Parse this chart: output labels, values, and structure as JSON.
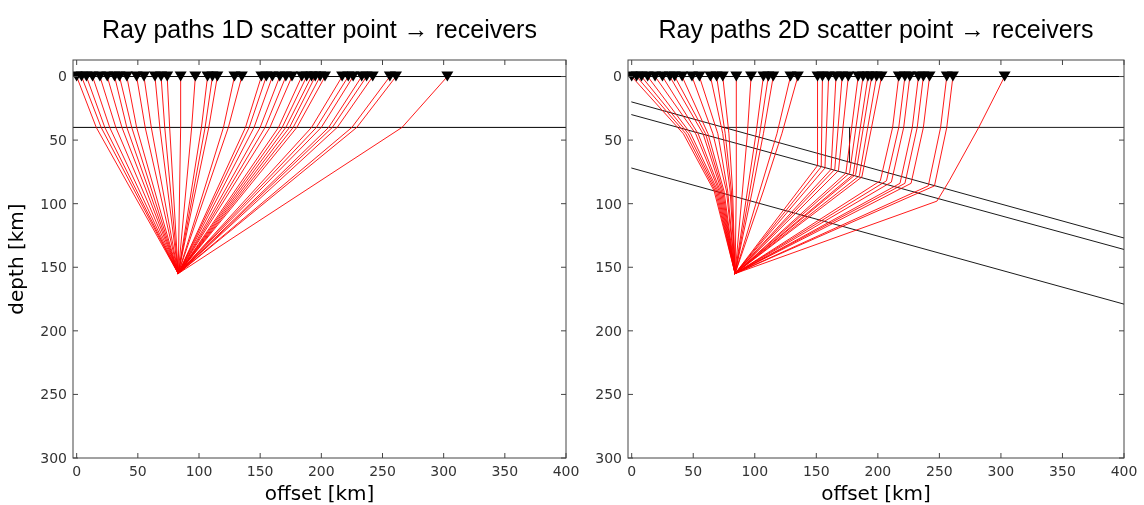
{
  "chart_data": [
    {
      "type": "line",
      "title": "Ray paths 1D scatter point → receivers",
      "xlabel": "offset [km]",
      "ylabel": "depth [km]",
      "xlim": [
        -3,
        400
      ],
      "xticks": [
        0,
        50,
        100,
        150,
        200,
        250,
        300,
        350,
        400
      ],
      "ylim": [
        300,
        -13
      ],
      "yticks": [
        0,
        50,
        100,
        150,
        200,
        250,
        300
      ],
      "ref_lines": [
        {
          "axis": "y",
          "value": 0,
          "color": "#000000"
        },
        {
          "axis": "y",
          "value": 40,
          "color": "#000000"
        }
      ],
      "series": [
        {
          "color": "#ff0000",
          "x": [
            83,
            16,
            0
          ],
          "values": [
            155,
            40,
            0
          ]
        },
        {
          "color": "#ff0000",
          "x": [
            83,
            20,
            4
          ],
          "values": [
            155,
            40,
            0
          ]
        },
        {
          "color": "#ff0000",
          "x": [
            83,
            23,
            8
          ],
          "values": [
            155,
            40,
            0
          ]
        },
        {
          "color": "#ff0000",
          "x": [
            83,
            27,
            13
          ],
          "values": [
            155,
            40,
            0
          ]
        },
        {
          "color": "#ff0000",
          "x": [
            83,
            32,
            19
          ],
          "values": [
            155,
            40,
            0
          ]
        },
        {
          "color": "#ff0000",
          "x": [
            83,
            37,
            25
          ],
          "values": [
            155,
            40,
            0
          ]
        },
        {
          "color": "#ff0000",
          "x": [
            83,
            41,
            31
          ],
          "values": [
            155,
            40,
            0
          ]
        },
        {
          "color": "#ff0000",
          "x": [
            83,
            45,
            35
          ],
          "values": [
            155,
            40,
            0
          ]
        },
        {
          "color": "#ff0000",
          "x": [
            83,
            49,
            41
          ],
          "values": [
            155,
            40,
            0
          ]
        },
        {
          "color": "#ff0000",
          "x": [
            83,
            56,
            49
          ],
          "values": [
            155,
            40,
            0
          ]
        },
        {
          "color": "#ff0000",
          "x": [
            83,
            61,
            55
          ],
          "values": [
            155,
            40,
            0
          ]
        },
        {
          "color": "#ff0000",
          "x": [
            83,
            68,
            64
          ],
          "values": [
            155,
            40,
            0
          ]
        },
        {
          "color": "#ff0000",
          "x": [
            83,
            72,
            69
          ],
          "values": [
            155,
            40,
            0
          ]
        },
        {
          "color": "#ff0000",
          "x": [
            83,
            76,
            74
          ],
          "values": [
            155,
            40,
            0
          ]
        },
        {
          "color": "#ff0000",
          "x": [
            83,
            85,
            85
          ],
          "values": [
            155,
            40,
            0
          ]
        },
        {
          "color": "#ff0000",
          "x": [
            83,
            94,
            97
          ],
          "values": [
            155,
            40,
            0
          ]
        },
        {
          "color": "#ff0000",
          "x": [
            83,
            102,
            107
          ],
          "values": [
            155,
            40,
            0
          ]
        },
        {
          "color": "#ff0000",
          "x": [
            83,
            105,
            111
          ],
          "values": [
            155,
            40,
            0
          ]
        },
        {
          "color": "#ff0000",
          "x": [
            83,
            108,
            115
          ],
          "values": [
            155,
            40,
            0
          ]
        },
        {
          "color": "#ff0000",
          "x": [
            83,
            120,
            129
          ],
          "values": [
            155,
            40,
            0
          ]
        },
        {
          "color": "#ff0000",
          "x": [
            83,
            124,
            135
          ],
          "values": [
            155,
            40,
            0
          ]
        },
        {
          "color": "#ff0000",
          "x": [
            83,
            138,
            151
          ],
          "values": [
            155,
            40,
            0
          ]
        },
        {
          "color": "#ff0000",
          "x": [
            83,
            141,
            155
          ],
          "values": [
            155,
            40,
            0
          ]
        },
        {
          "color": "#ff0000",
          "x": [
            83,
            145,
            160
          ],
          "values": [
            155,
            40,
            0
          ]
        },
        {
          "color": "#ff0000",
          "x": [
            83,
            150,
            166
          ],
          "values": [
            155,
            40,
            0
          ]
        },
        {
          "color": "#ff0000",
          "x": [
            83,
            154,
            171
          ],
          "values": [
            155,
            40,
            0
          ]
        },
        {
          "color": "#ff0000",
          "x": [
            83,
            158,
            176
          ],
          "values": [
            155,
            40,
            0
          ]
        },
        {
          "color": "#ff0000",
          "x": [
            83,
            165,
            184
          ],
          "values": [
            155,
            40,
            0
          ]
        },
        {
          "color": "#ff0000",
          "x": [
            83,
            168,
            188
          ],
          "values": [
            155,
            40,
            0
          ]
        },
        {
          "color": "#ff0000",
          "x": [
            83,
            171,
            192
          ],
          "values": [
            155,
            40,
            0
          ]
        },
        {
          "color": "#ff0000",
          "x": [
            83,
            174,
            195
          ],
          "values": [
            155,
            40,
            0
          ]
        },
        {
          "color": "#ff0000",
          "x": [
            83,
            177,
            199
          ],
          "values": [
            155,
            40,
            0
          ]
        },
        {
          "color": "#ff0000",
          "x": [
            83,
            180,
            203
          ],
          "values": [
            155,
            40,
            0
          ]
        },
        {
          "color": "#ff0000",
          "x": [
            83,
            192,
            217
          ],
          "values": [
            155,
            40,
            0
          ]
        },
        {
          "color": "#ff0000",
          "x": [
            83,
            196,
            222
          ],
          "values": [
            155,
            40,
            0
          ]
        },
        {
          "color": "#ff0000",
          "x": [
            83,
            200,
            226
          ],
          "values": [
            155,
            40,
            0
          ]
        },
        {
          "color": "#ff0000",
          "x": [
            83,
            206,
            233
          ],
          "values": [
            155,
            40,
            0
          ]
        },
        {
          "color": "#ff0000",
          "x": [
            83,
            209,
            237
          ],
          "values": [
            155,
            40,
            0
          ]
        },
        {
          "color": "#ff0000",
          "x": [
            83,
            213,
            242
          ],
          "values": [
            155,
            40,
            0
          ]
        },
        {
          "color": "#ff0000",
          "x": [
            83,
            225,
            256
          ],
          "values": [
            155,
            40,
            0
          ]
        },
        {
          "color": "#ff0000",
          "x": [
            83,
            229,
            261
          ],
          "values": [
            155,
            40,
            0
          ]
        },
        {
          "color": "#ff0000",
          "x": [
            83,
            266,
            303
          ],
          "values": [
            155,
            40,
            0
          ]
        },
        {
          "type": "scatter",
          "color": "#000000",
          "marker": "triangle",
          "x": [
            0,
            4,
            8,
            13,
            19,
            25,
            31,
            35,
            41,
            49,
            55,
            64,
            69,
            74,
            85,
            97,
            107,
            111,
            115,
            129,
            135,
            151,
            155,
            160,
            166,
            171,
            176,
            184,
            188,
            192,
            195,
            199,
            203,
            217,
            222,
            226,
            233,
            237,
            242,
            256,
            261,
            303
          ],
          "values": [
            0,
            0,
            0,
            0,
            0,
            0,
            0,
            0,
            0,
            0,
            0,
            0,
            0,
            0,
            0,
            0,
            0,
            0,
            0,
            0,
            0,
            0,
            0,
            0,
            0,
            0,
            0,
            0,
            0,
            0,
            0,
            0,
            0,
            0,
            0,
            0,
            0,
            0,
            0,
            0,
            0,
            0
          ]
        }
      ]
    },
    {
      "type": "line",
      "title": "Ray paths 2D scatter point → receivers",
      "xlabel": "offset [km]",
      "xlim": [
        -3,
        400
      ],
      "xticks": [
        0,
        50,
        100,
        150,
        200,
        250,
        300,
        350,
        400
      ],
      "ylim": [
        300,
        -13
      ],
      "yticks": [
        0,
        50,
        100,
        150,
        200,
        250,
        300
      ],
      "ref_lines": [
        {
          "axis": "y",
          "value": 0,
          "color": "#000000"
        }
      ],
      "series": [
        {
          "color": "#000000",
          "x": [
            0,
            400
          ],
          "values": [
            20,
            127
          ]
        },
        {
          "color": "#000000",
          "x": [
            0,
            400
          ],
          "values": [
            30,
            136
          ]
        },
        {
          "color": "#000000",
          "x": [
            0,
            400
          ],
          "values": [
            72,
            179
          ]
        },
        {
          "color": "#000000",
          "x": [
            74,
            400
          ],
          "values": [
            40,
            40
          ]
        },
        {
          "color": "#000000",
          "x": [
            177,
            177
          ],
          "values": [
            40,
            67
          ]
        },
        {
          "color": "#ff0000",
          "x": [
            84,
            67,
            42,
            0
          ],
          "values": [
            155,
            90,
            45,
            0
          ]
        },
        {
          "color": "#ff0000",
          "x": [
            84,
            68,
            44,
            4
          ],
          "values": [
            155,
            90,
            45,
            0
          ]
        },
        {
          "color": "#ff0000",
          "x": [
            84,
            69,
            46,
            8
          ],
          "values": [
            155,
            90,
            45,
            0
          ]
        },
        {
          "color": "#ff0000",
          "x": [
            84,
            70,
            48,
            13
          ],
          "values": [
            155,
            90,
            45,
            0
          ]
        },
        {
          "color": "#ff0000",
          "x": [
            84,
            71,
            52,
            19
          ],
          "values": [
            155,
            90,
            45,
            0
          ]
        },
        {
          "color": "#ff0000",
          "x": [
            84,
            72,
            54,
            25
          ],
          "values": [
            155,
            90,
            45,
            0
          ]
        },
        {
          "color": "#ff0000",
          "x": [
            84,
            73,
            58,
            31
          ],
          "values": [
            155,
            90,
            45,
            0
          ]
        },
        {
          "color": "#ff0000",
          "x": [
            84,
            74,
            60,
            35
          ],
          "values": [
            155,
            90,
            45,
            0
          ]
        },
        {
          "color": "#ff0000",
          "x": [
            84,
            75,
            62,
            41
          ],
          "values": [
            155,
            90,
            45,
            0
          ]
        },
        {
          "color": "#ff0000",
          "x": [
            84,
            77,
            66,
            49
          ],
          "values": [
            155,
            90,
            45,
            0
          ]
        },
        {
          "color": "#ff0000",
          "x": [
            84,
            78,
            70,
            55
          ],
          "values": [
            155,
            90,
            45,
            0
          ]
        },
        {
          "color": "#ff0000",
          "x": [
            84,
            80,
            74,
            64
          ],
          "values": [
            155,
            90,
            45,
            0
          ]
        },
        {
          "color": "#ff0000",
          "x": [
            84,
            81,
            76,
            69
          ],
          "values": [
            155,
            90,
            45,
            0
          ]
        },
        {
          "color": "#ff0000",
          "x": [
            84,
            82,
            79,
            74
          ],
          "values": [
            155,
            90,
            45,
            0
          ]
        },
        {
          "color": "#ff0000",
          "x": [
            84,
            85,
            85,
            85
          ],
          "values": [
            155,
            90,
            45,
            0
          ]
        },
        {
          "color": "#ff0000",
          "x": [
            84,
            90,
            94,
            97
          ],
          "values": [
            155,
            90,
            45,
            0
          ]
        },
        {
          "color": "#ff0000",
          "x": [
            84,
            94,
            101,
            107
          ],
          "values": [
            155,
            90,
            45,
            0
          ]
        },
        {
          "color": "#ff0000",
          "x": [
            84,
            96,
            104,
            111
          ],
          "values": [
            155,
            90,
            45,
            0
          ]
        },
        {
          "color": "#ff0000",
          "x": [
            84,
            98,
            107,
            115
          ],
          "values": [
            155,
            90,
            45,
            0
          ]
        },
        {
          "color": "#ff0000",
          "x": [
            84,
            104,
            118,
            129
          ],
          "values": [
            155,
            90,
            45,
            0
          ]
        },
        {
          "color": "#ff0000",
          "x": [
            84,
            107,
            122,
            135
          ],
          "values": [
            155,
            90,
            45,
            0
          ]
        },
        {
          "color": "#ff0000",
          "x": [
            84,
            151,
            151
          ],
          "values": [
            155,
            70,
            0
          ]
        },
        {
          "color": "#ff0000",
          "x": [
            84,
            154,
            155
          ],
          "values": [
            155,
            71,
            0
          ]
        },
        {
          "color": "#ff0000",
          "x": [
            84,
            157,
            160
          ],
          "values": [
            155,
            72,
            0
          ]
        },
        {
          "color": "#ff0000",
          "x": [
            84,
            162,
            166
          ],
          "values": [
            155,
            73,
            0
          ]
        },
        {
          "color": "#ff0000",
          "x": [
            84,
            165,
            171
          ],
          "values": [
            155,
            73,
            0
          ]
        },
        {
          "color": "#ff0000",
          "x": [
            84,
            168,
            176
          ],
          "values": [
            155,
            74,
            0
          ]
        },
        {
          "color": "#ff0000",
          "x": [
            84,
            174,
            184
          ],
          "values": [
            155,
            76,
            0
          ]
        },
        {
          "color": "#ff0000",
          "x": [
            84,
            177,
            188
          ],
          "values": [
            155,
            76,
            0
          ]
        },
        {
          "color": "#ff0000",
          "x": [
            84,
            180,
            192
          ],
          "values": [
            155,
            77,
            0
          ]
        },
        {
          "color": "#ff0000",
          "x": [
            84,
            182,
            195
          ],
          "values": [
            155,
            77,
            0
          ]
        },
        {
          "color": "#ff0000",
          "x": [
            84,
            185,
            199
          ],
          "values": [
            155,
            78,
            0
          ]
        },
        {
          "color": "#ff0000",
          "x": [
            84,
            187,
            203
          ],
          "values": [
            155,
            79,
            0
          ]
        },
        {
          "color": "#ff0000",
          "x": [
            84,
            202,
            212,
            217
          ],
          "values": [
            155,
            82,
            40,
            0
          ]
        },
        {
          "color": "#ff0000",
          "x": [
            84,
            207,
            217,
            222
          ],
          "values": [
            155,
            82,
            40,
            0
          ]
        },
        {
          "color": "#ff0000",
          "x": [
            84,
            211,
            221,
            226
          ],
          "values": [
            155,
            83,
            40,
            0
          ]
        },
        {
          "color": "#ff0000",
          "x": [
            84,
            218,
            228,
            233
          ],
          "values": [
            155,
            84,
            40,
            0
          ]
        },
        {
          "color": "#ff0000",
          "x": [
            84,
            222,
            232,
            237
          ],
          "values": [
            155,
            84,
            40,
            0
          ]
        },
        {
          "color": "#ff0000",
          "x": [
            84,
            227,
            237,
            242
          ],
          "values": [
            155,
            84,
            40,
            0
          ]
        },
        {
          "color": "#ff0000",
          "x": [
            84,
            241,
            251,
            256
          ],
          "values": [
            155,
            86,
            40,
            0
          ]
        },
        {
          "color": "#ff0000",
          "x": [
            84,
            246,
            256,
            261
          ],
          "values": [
            155,
            86,
            40,
            0
          ]
        },
        {
          "color": "#ff0000",
          "x": [
            84,
            248,
            258,
            282,
            303
          ],
          "values": [
            155,
            98,
            82,
            40,
            0
          ]
        },
        {
          "type": "scatter",
          "color": "#000000",
          "marker": "triangle",
          "x": [
            0,
            4,
            8,
            13,
            19,
            25,
            31,
            35,
            41,
            49,
            55,
            64,
            69,
            74,
            85,
            97,
            107,
            111,
            115,
            129,
            135,
            151,
            155,
            160,
            166,
            171,
            176,
            184,
            188,
            192,
            195,
            199,
            203,
            217,
            222,
            226,
            233,
            237,
            242,
            256,
            261,
            303
          ],
          "values": [
            0,
            0,
            0,
            0,
            0,
            0,
            0,
            0,
            0,
            0,
            0,
            0,
            0,
            0,
            0,
            0,
            0,
            0,
            0,
            0,
            0,
            0,
            0,
            0,
            0,
            0,
            0,
            0,
            0,
            0,
            0,
            0,
            0,
            0,
            0,
            0,
            0,
            0,
            0,
            0,
            0,
            0
          ]
        }
      ]
    }
  ]
}
